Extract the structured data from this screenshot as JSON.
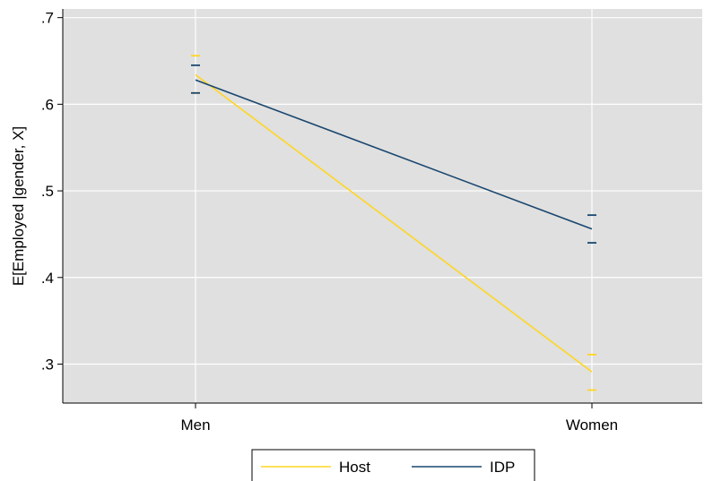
{
  "chart_data": {
    "type": "line",
    "title": "",
    "xlabel": "",
    "ylabel": "E[Employed |gender, X]",
    "categories": [
      "Men",
      "Women"
    ],
    "ylim": [
      0.255,
      0.71
    ],
    "yticks": [
      0.3,
      0.4,
      0.5,
      0.6,
      0.7
    ],
    "ytick_labels": [
      ".3",
      ".4",
      ".5",
      ".6",
      ".7"
    ],
    "grid": true,
    "legend_position": "bottom",
    "series": [
      {
        "name": "Host",
        "color": "#FFD520",
        "values": [
          0.634,
          0.291
        ],
        "ci_lower": [
          0.613,
          0.27
        ],
        "ci_upper": [
          0.656,
          0.311
        ]
      },
      {
        "name": "IDP",
        "color": "#1A476F",
        "values": [
          0.628,
          0.456
        ],
        "ci_lower": [
          0.613,
          0.44
        ],
        "ci_upper": [
          0.645,
          0.472
        ]
      }
    ]
  }
}
